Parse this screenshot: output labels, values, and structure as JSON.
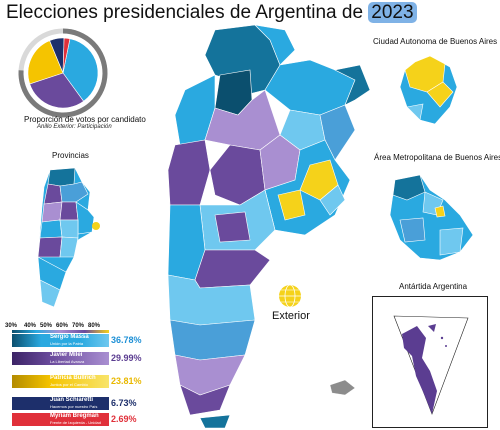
{
  "title_main": "Elecciones presidenciales de Argentina de",
  "title_year": "2023",
  "pie": {
    "caption": "Proporción de votos por candidato",
    "subcaption": "Anillo Exterior: Participación",
    "participation": 0.76
  },
  "insets": {
    "provincias": "Provincias",
    "caba": "Ciudad Autonoma de Buenos Aires",
    "amba": "Área Metropolitana de Buenos Aires",
    "antartida": "Antártida Argentina"
  },
  "exterior": "Exterior",
  "scale_ticks": [
    "30%",
    "40%",
    "50%",
    "60%",
    "70%",
    "80%"
  ],
  "candidates": [
    {
      "name": "Sergio Massa",
      "party": "Unión por la Patria",
      "pct": "36.78%",
      "value": 36.78,
      "color": "#2aa9e0",
      "pct_color": "#1e90d6"
    },
    {
      "name": "Javier Milei",
      "party": "La Libertad Avanza",
      "pct": "29.99%",
      "value": 29.99,
      "color": "#6a4a9c",
      "pct_color": "#5b3d91"
    },
    {
      "name": "Patricia Bullrich",
      "party": "Juntos por el Cambio",
      "pct": "23.81%",
      "value": 23.81,
      "color": "#f5c400",
      "pct_color": "#e9b800"
    },
    {
      "name": "Juan Schiaretti",
      "party": "Hacemos por nuestro País",
      "pct": "6.73%",
      "value": 6.73,
      "color": "#1d2f6b",
      "pct_color": "#1d2f6b"
    },
    {
      "name": "Myriam Bregman",
      "party": "Frente de Izquierda - Unidad",
      "pct": "2.69%",
      "value": 2.69,
      "color": "#e0303a",
      "pct_color": "#e0303a"
    }
  ],
  "colors": {
    "massa_light": "#6fc8ef",
    "massa": "#2aa9e0",
    "massa_dark": "#14739b",
    "massa_darker": "#0b4f6e",
    "milei_light": "#a98fd1",
    "milei": "#6a4a9c",
    "bullrich": "#f5d21a",
    "schiaretti": "#1d2f6b"
  }
}
